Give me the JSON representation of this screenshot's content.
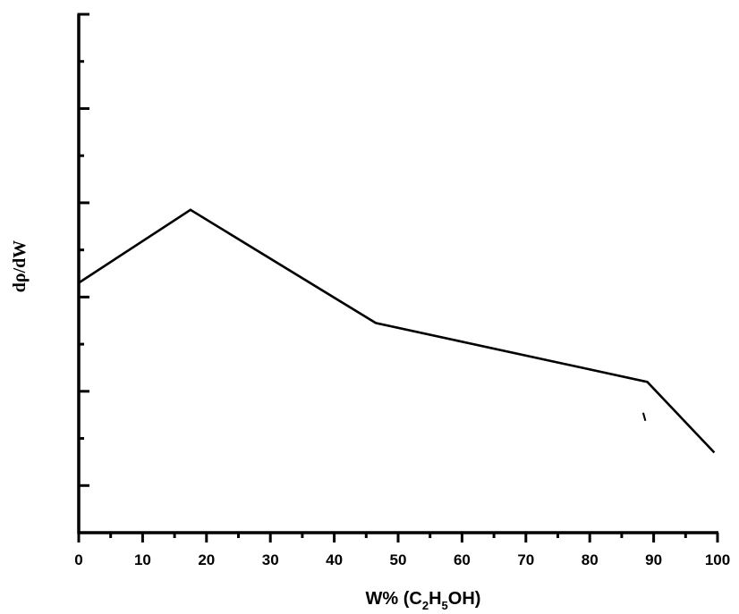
{
  "chart_data": {
    "type": "line",
    "title": "",
    "xlabel": {
      "parts": [
        {
          "text": "W% (C",
          "sub": false
        },
        {
          "text": "2",
          "sub": true
        },
        {
          "text": "H",
          "sub": false
        },
        {
          "text": "5",
          "sub": true
        },
        {
          "text": "OH)",
          "sub": false
        }
      ]
    },
    "ylabel": "dρ/dW",
    "xlim": [
      0,
      100
    ],
    "xticks": [
      0,
      10,
      20,
      30,
      40,
      50,
      60,
      70,
      80,
      90,
      100
    ],
    "xtick_labels": [
      "0",
      "10",
      "20",
      "30",
      "40",
      "50",
      "60",
      "70",
      "80",
      "90",
      "100"
    ],
    "ylim": [
      0,
      11
    ],
    "y_major_ticks": [
      1,
      3,
      5,
      7,
      9,
      11
    ],
    "y_minor_ticks": [
      2,
      4,
      6,
      8,
      10
    ],
    "y_tick_labels_shown": false,
    "grid": false,
    "legend": "none",
    "series": [
      {
        "x": [
          0,
          17.5,
          46.5,
          89,
          99.5
        ],
        "y": [
          5.3,
          6.85,
          4.45,
          3.2,
          1.7
        ]
      }
    ],
    "annotations": [
      {
        "type": "stray-mark",
        "x": 88.5,
        "y": 2.45
      }
    ],
    "colors": {
      "line": "#000000",
      "axis": "#000000"
    }
  }
}
